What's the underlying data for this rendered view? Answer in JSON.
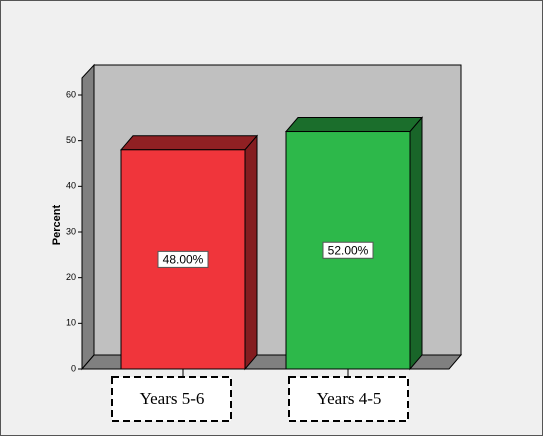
{
  "chart_data": {
    "type": "bar3d",
    "ylabel": "Percent",
    "categories": [
      "Years 5-6",
      "Years 4-5"
    ],
    "values": [
      48,
      52
    ],
    "value_labels": [
      "48.00%",
      "52.00%"
    ],
    "colors": [
      "#f0353b",
      "#2db84a"
    ],
    "ylim": [
      0,
      60
    ],
    "yticks": [
      0,
      10,
      20,
      30,
      40,
      50,
      60
    ]
  }
}
